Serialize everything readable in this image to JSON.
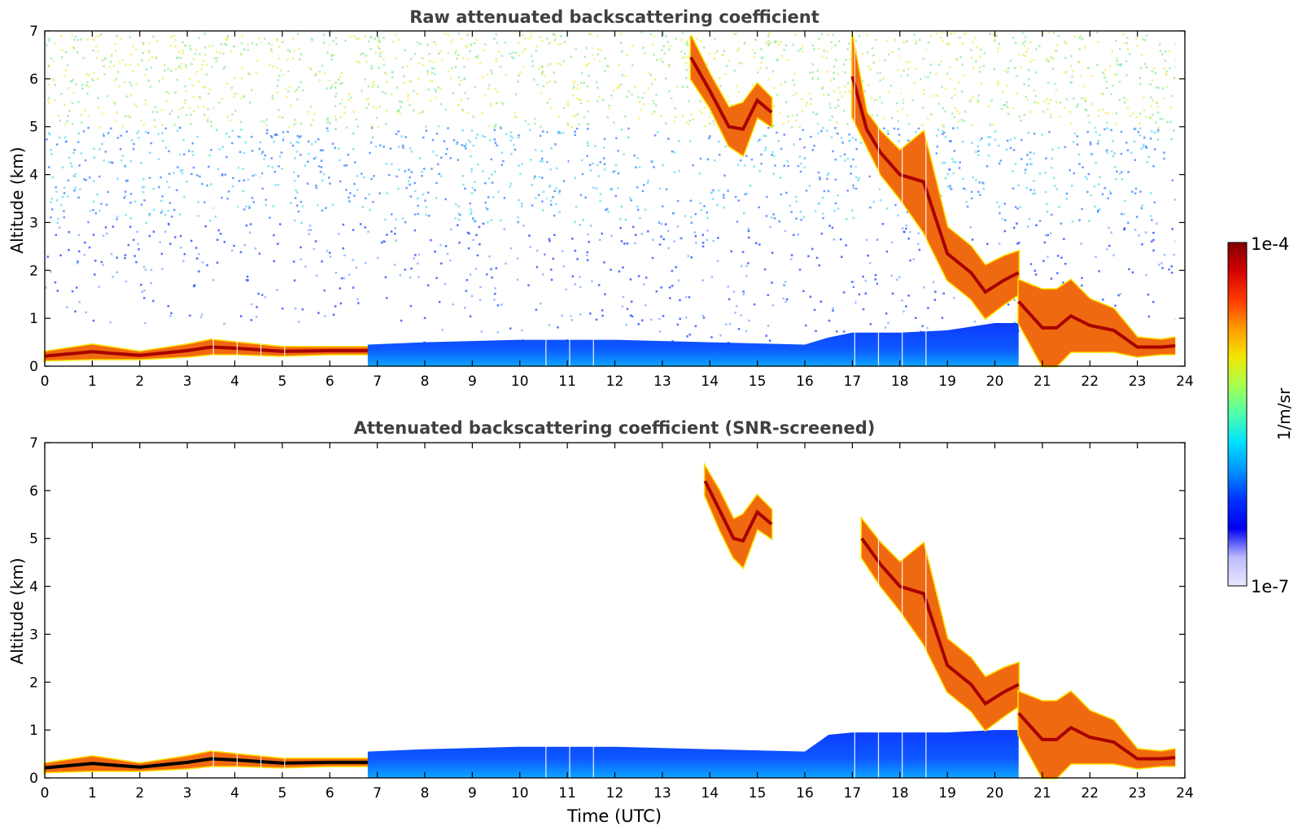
{
  "chart_data": [
    {
      "type": "heatmap",
      "title": "Raw attenuated backscattering coefficient",
      "xlabel": "",
      "ylabel": "Altitude (km)",
      "xlim": [
        0,
        24
      ],
      "ylim": [
        0,
        7
      ],
      "xticks": [
        "0",
        "1",
        "2",
        "3",
        "4",
        "5",
        "6",
        "7",
        "8",
        "9",
        "10",
        "11",
        "12",
        "13",
        "14",
        "15",
        "16",
        "17",
        "18",
        "19",
        "20",
        "21",
        "22",
        "23",
        "24"
      ],
      "yticks": [
        "0",
        "1",
        "2",
        "3",
        "4",
        "5",
        "6",
        "7"
      ],
      "data_end_time": 23.8,
      "data_gaps_utc": [
        3.55,
        4.05,
        4.55,
        5.05,
        10.55,
        11.05,
        11.55,
        17.05,
        17.55,
        18.05,
        18.55
      ],
      "layers": [
        {
          "name": "",
          "time": [
            0,
            1,
            2,
            3,
            3.5,
            4,
            5,
            6,
            6.8
          ],
          "base_km": [
            0.12,
            0.15,
            0.15,
            0.2,
            0.25,
            0.25,
            0.22,
            0.25,
            0.25
          ],
          "top_km": [
            0.3,
            0.45,
            0.3,
            0.45,
            0.55,
            0.5,
            0.4,
            0.4,
            0.4
          ],
          "intensity": "high"
        },
        {
          "name": "",
          "time": [
            6.8,
            8,
            10,
            12,
            14,
            16,
            16.5,
            17,
            18,
            19,
            20,
            20.5
          ],
          "base_km": [
            0,
            0,
            0,
            0,
            0,
            0,
            0,
            0,
            0,
            0,
            0,
            0
          ],
          "top_km": [
            0.45,
            0.5,
            0.55,
            0.55,
            0.5,
            0.45,
            0.6,
            0.7,
            0.7,
            0.75,
            0.9,
            0.9
          ],
          "intensity": "low"
        },
        {
          "name": "",
          "time": [
            13.6,
            14.0,
            14.4,
            14.7,
            15.0,
            15.3
          ],
          "base_km": [
            6.0,
            5.4,
            4.6,
            4.4,
            5.2,
            5.0
          ],
          "top_km": [
            6.9,
            6.1,
            5.4,
            5.5,
            5.9,
            5.6
          ],
          "intensity": "high"
        },
        {
          "name": "",
          "time": [
            17.0,
            17.3,
            17.6,
            18.0,
            18.5,
            19.0,
            19.5,
            19.8,
            20.2,
            20.5
          ],
          "base_km": [
            5.2,
            4.6,
            4.0,
            3.5,
            2.8,
            1.8,
            1.4,
            1.0,
            1.3,
            1.5
          ],
          "top_km": [
            6.9,
            5.3,
            4.9,
            4.5,
            4.9,
            2.9,
            2.5,
            2.1,
            2.3,
            2.4
          ],
          "intensity": "high"
        },
        {
          "name": "",
          "time": [
            20.5,
            21.0,
            21.3,
            21.6,
            22.0,
            22.5,
            23.0,
            23.5,
            23.8
          ],
          "base_km": [
            0.9,
            0.0,
            0.0,
            0.3,
            0.3,
            0.3,
            0.2,
            0.25,
            0.25
          ],
          "top_km": [
            1.8,
            1.6,
            1.6,
            1.8,
            1.4,
            1.2,
            0.6,
            0.55,
            0.6
          ],
          "intensity": "high"
        }
      ]
    },
    {
      "type": "heatmap",
      "title": "Attenuated backscattering coefficient (SNR-screened)",
      "xlabel": "Time (UTC)",
      "ylabel": "Altitude (km)",
      "xlim": [
        0,
        24
      ],
      "ylim": [
        0,
        7
      ],
      "xticks": [
        "0",
        "1",
        "2",
        "3",
        "4",
        "5",
        "6",
        "7",
        "8",
        "9",
        "10",
        "11",
        "12",
        "13",
        "14",
        "15",
        "16",
        "17",
        "18",
        "19",
        "20",
        "21",
        "22",
        "23",
        "24"
      ],
      "yticks": [
        "0",
        "1",
        "2",
        "3",
        "4",
        "5",
        "6",
        "7"
      ],
      "data_end_time": 23.8,
      "data_gaps_utc": [
        3.55,
        4.05,
        4.55,
        5.05,
        10.55,
        11.05,
        11.55,
        17.05,
        17.55,
        18.05,
        18.55
      ],
      "layers": [
        {
          "name": "",
          "time": [
            0,
            1,
            2,
            3,
            3.5,
            4,
            5,
            6,
            6.8
          ],
          "base_km": [
            0.12,
            0.15,
            0.15,
            0.2,
            0.25,
            0.25,
            0.22,
            0.25,
            0.25
          ],
          "top_km": [
            0.3,
            0.45,
            0.3,
            0.45,
            0.55,
            0.5,
            0.4,
            0.4,
            0.4
          ],
          "intensity": "high"
        },
        {
          "name": "",
          "time": [
            6.8,
            8,
            10,
            12,
            14,
            16,
            16.5,
            17,
            18,
            19,
            20,
            20.5
          ],
          "base_km": [
            0,
            0,
            0,
            0,
            0,
            0,
            0,
            0,
            0,
            0,
            0,
            0
          ],
          "top_km": [
            0.55,
            0.6,
            0.65,
            0.65,
            0.6,
            0.55,
            0.9,
            0.95,
            0.95,
            0.95,
            1.0,
            1.0
          ],
          "intensity": "low"
        },
        {
          "name": "",
          "time": [
            13.9,
            14.2,
            14.5,
            14.7,
            15.0,
            15.3
          ],
          "base_km": [
            5.9,
            5.2,
            4.6,
            4.4,
            5.2,
            5.0
          ],
          "top_km": [
            6.5,
            6.0,
            5.4,
            5.5,
            5.9,
            5.6
          ],
          "intensity": "high"
        },
        {
          "name": "",
          "time": [
            17.2,
            17.6,
            18.0,
            18.5,
            19.0,
            19.5,
            19.8,
            20.2,
            20.5
          ],
          "base_km": [
            4.6,
            4.0,
            3.5,
            2.8,
            1.8,
            1.4,
            1.0,
            1.3,
            1.5
          ],
          "top_km": [
            5.4,
            4.9,
            4.5,
            4.9,
            2.9,
            2.5,
            2.1,
            2.3,
            2.4
          ],
          "intensity": "high"
        },
        {
          "name": "",
          "time": [
            20.5,
            21.0,
            21.3,
            21.6,
            22.0,
            22.5,
            23.0,
            23.5,
            23.8
          ],
          "base_km": [
            0.9,
            0.0,
            0.0,
            0.3,
            0.3,
            0.3,
            0.2,
            0.25,
            0.25
          ],
          "top_km": [
            1.8,
            1.6,
            1.6,
            1.8,
            1.4,
            1.2,
            0.6,
            0.55,
            0.6
          ],
          "intensity": "high"
        }
      ]
    }
  ],
  "colorbar": {
    "max_label": "1e-4",
    "min_label": "1e-7",
    "unit_label": "1/m/sr",
    "colors": [
      "#7f0000",
      "#d40000",
      "#ff3a00",
      "#ff9b00",
      "#f2e600",
      "#a6ff50",
      "#4dffae",
      "#00e0ff",
      "#0090ff",
      "#0030ff",
      "#0000f0",
      "#bcbcff",
      "#e8e8ff"
    ]
  }
}
